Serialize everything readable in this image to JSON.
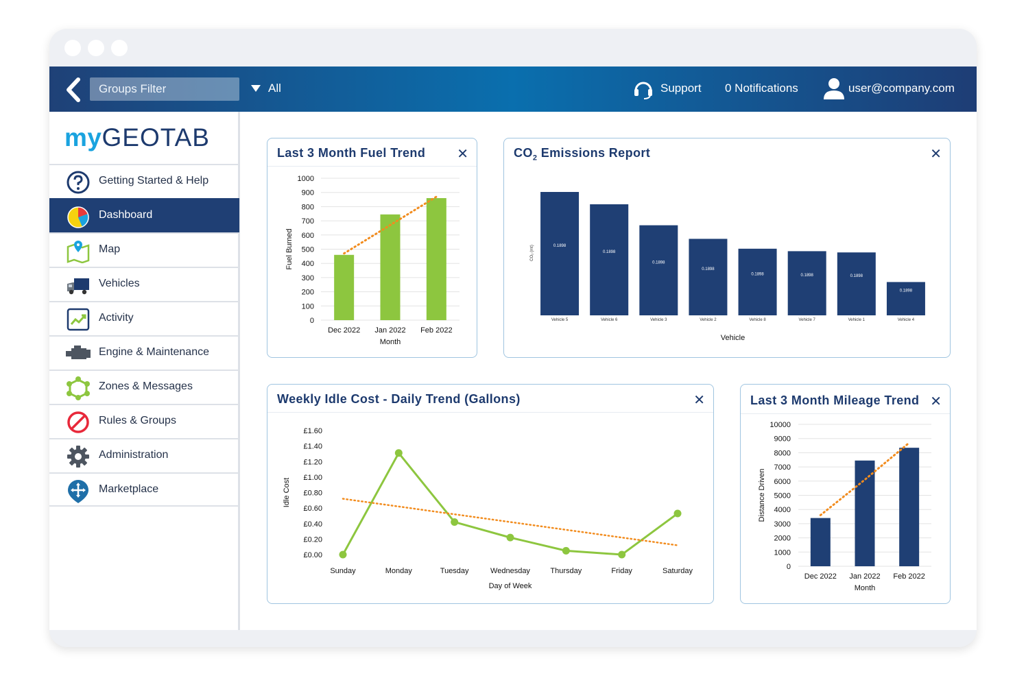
{
  "topbar": {
    "groups_filter_label": "Groups Filter",
    "all_label": "All",
    "support_label": "Support",
    "notifications_label": "0 Notifications",
    "user_label": "user@company.com"
  },
  "logo": {
    "my": "my",
    "geotab": "GEOTAB"
  },
  "sidebar": {
    "items": [
      {
        "label": "Getting Started & Help",
        "icon": "help-icon"
      },
      {
        "label": "Dashboard",
        "icon": "pie-chart-icon",
        "active": true
      },
      {
        "label": "Map",
        "icon": "map-icon"
      },
      {
        "label": "Vehicles",
        "icon": "truck-icon"
      },
      {
        "label": "Activity",
        "icon": "activity-icon"
      },
      {
        "label": "Engine & Maintenance",
        "icon": "engine-icon"
      },
      {
        "label": "Zones & Messages",
        "icon": "zones-icon"
      },
      {
        "label": "Rules & Groups",
        "icon": "prohibited-icon"
      },
      {
        "label": "Administration",
        "icon": "gear-icon"
      },
      {
        "label": "Marketplace",
        "icon": "marketplace-icon"
      }
    ]
  },
  "colors": {
    "accent_green": "#8dc63f",
    "navy": "#1f3f74",
    "trend_orange": "#f28c1e"
  },
  "cards": {
    "fuel": {
      "title": "Last 3 Month Fuel Trend",
      "close": "✕"
    },
    "co2": {
      "title_prefix": "CO",
      "title_sub": "2",
      "title_suffix": " Emissions Report",
      "close": "✕"
    },
    "idle": {
      "title": "Weekly Idle Cost - Daily Trend (Gallons)",
      "close": "✕"
    },
    "mileage": {
      "title": "Last 3 Month Mileage Trend",
      "close": "✕"
    }
  },
  "chart_data": [
    {
      "id": "fuel",
      "type": "bar",
      "categories": [
        "Dec 2022",
        "Jan 2022",
        "Feb 2022"
      ],
      "values": [
        460,
        745,
        860
      ],
      "xlabel": "Month",
      "ylabel": "Fuel Burned",
      "ylim": [
        0,
        1000
      ],
      "yticks": [
        "0",
        "100",
        "200",
        "300",
        "400",
        "500",
        "600",
        "700",
        "800",
        "900",
        "1000"
      ],
      "trendline": [
        470,
        670,
        870
      ],
      "color": "#8dc63f"
    },
    {
      "id": "co2",
      "type": "bar",
      "categories": [
        "Vehicle 5",
        "Vehicle 6",
        "Vehicle 3",
        "Vehicle 2",
        "Vehicle 8",
        "Vehicle 7",
        "Vehicle 1",
        "Vehicle 4"
      ],
      "values": [
        100,
        90,
        73,
        62,
        54,
        52,
        51,
        27
      ],
      "data_labels": [
        "0.1898",
        "0.1898",
        "0.1898",
        "0.1898",
        "0.1898",
        "0.1898",
        "0.1898",
        "0.1898"
      ],
      "xlabel": "Vehicle",
      "ylabel": "CO₂ (mt)",
      "color": "#1f3f74"
    },
    {
      "id": "idle",
      "type": "line",
      "categories": [
        "Sunday",
        "Monday",
        "Tuesday",
        "Wednesday",
        "Thursday",
        "Friday",
        "Saturday"
      ],
      "values": [
        0.0,
        1.31,
        0.42,
        0.22,
        0.05,
        0.0,
        0.53
      ],
      "xlabel": "Day of Week",
      "ylabel": "Idle Cost",
      "ylim": [
        0,
        1.6
      ],
      "yticks": [
        "£0.00",
        "£0.20",
        "£0.40",
        "£0.60",
        "£0.80",
        "£1.00",
        "£1.20",
        "£1.40",
        "£1.60"
      ],
      "trendline": [
        0.72,
        0.12
      ],
      "color": "#8dc63f"
    },
    {
      "id": "mileage",
      "type": "bar",
      "categories": [
        "Dec 2022",
        "Jan 2022",
        "Feb 2022"
      ],
      "values": [
        3400,
        7450,
        8350
      ],
      "xlabel": "Month",
      "ylabel": "Distance Driven",
      "ylim": [
        0,
        10000
      ],
      "yticks": [
        "0",
        "1000",
        "2000",
        "3000",
        "4000",
        "5000",
        "6000",
        "7000",
        "8000",
        "9000",
        "10000"
      ],
      "trendline": [
        3600,
        6100,
        8700
      ],
      "color": "#1f3f74"
    }
  ]
}
